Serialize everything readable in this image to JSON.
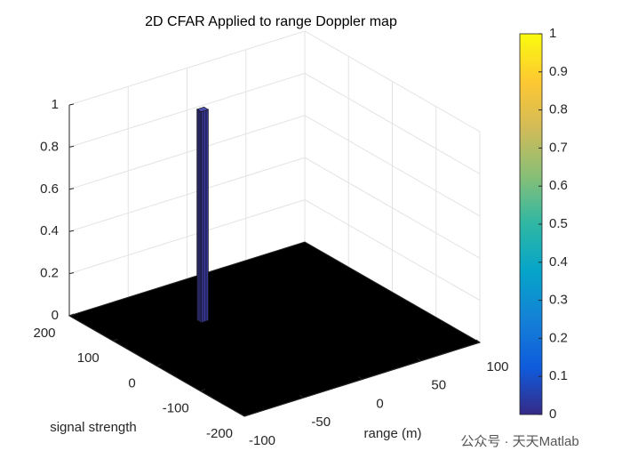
{
  "chart_data": {
    "type": "surface3d",
    "title": "2D CFAR Applied to range Doppler map",
    "xlabel": "range (m)",
    "ylabel": "signal strength",
    "xlim": [
      -100,
      100
    ],
    "xticks": [
      -100,
      -50,
      0,
      50,
      100
    ],
    "ylim": [
      -200,
      200
    ],
    "yticks": [
      -200,
      -100,
      0,
      100,
      200
    ],
    "zlim": [
      0,
      1
    ],
    "zticks": [
      0,
      0.2,
      0.4,
      0.6,
      0.8,
      1
    ],
    "clim": [
      0,
      1
    ],
    "cticks": [
      0,
      0.1,
      0.2,
      0.3,
      0.4,
      0.5,
      0.6,
      0.7,
      0.8,
      0.9,
      1
    ],
    "colormap": [
      "#352a87",
      "#0f5cdd",
      "#1481d6",
      "#06a4ca",
      "#2eb7a4",
      "#87bf77",
      "#d1bb59",
      "#fec832",
      "#f9fb0e"
    ],
    "grid": true,
    "spike": {
      "x": [
        -34,
        -28
      ],
      "y": [
        76,
        86
      ],
      "z": 1,
      "color": "#3b3ba6"
    }
  },
  "watermark": "公众号 · 天天Matlab"
}
